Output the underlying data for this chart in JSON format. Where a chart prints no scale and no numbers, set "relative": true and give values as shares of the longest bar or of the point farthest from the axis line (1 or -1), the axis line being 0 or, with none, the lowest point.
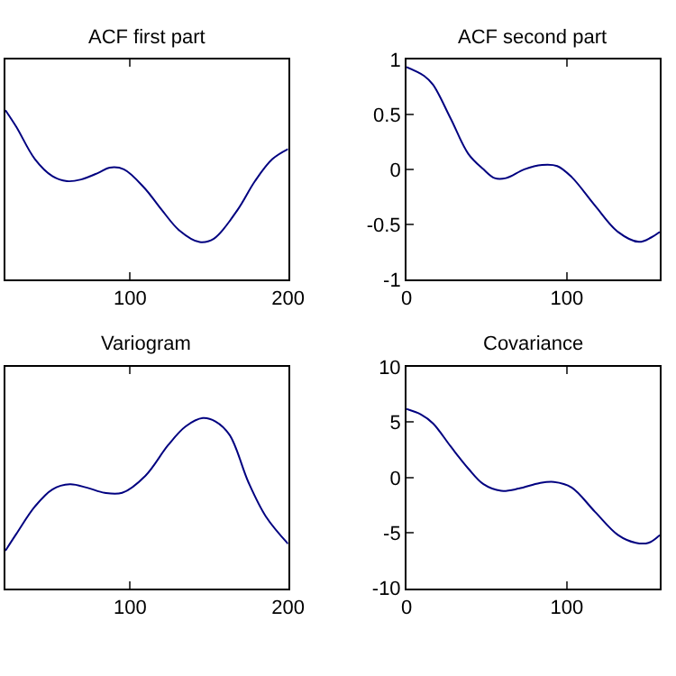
{
  "chart_data": [
    {
      "type": "line",
      "title": "ACF first part",
      "relative": true,
      "tick_labels": "x",
      "color": "#000080",
      "xlim": [
        21,
        200
      ],
      "xticks": [
        100,
        200
      ],
      "x": [
        21,
        28,
        39.7,
        50.7,
        60,
        69,
        80,
        87,
        96,
        109,
        120,
        131,
        144,
        153,
        168,
        179,
        190,
        200
      ],
      "values": [
        1,
        0.9,
        0.71,
        0.61,
        0.58,
        0.59,
        0.63,
        0.66,
        0.65,
        0.54,
        0.41,
        0.29,
        0.22,
        0.24,
        0.41,
        0.58,
        0.71,
        0.77
      ]
    },
    {
      "type": "line",
      "title": "ACF second part",
      "color": "#000080",
      "xlim": [
        0,
        158
      ],
      "xticks": [
        0,
        100
      ],
      "ylim": [
        -1,
        1
      ],
      "yticks": [
        -1,
        -0.5,
        0,
        0.5,
        1
      ],
      "x": [
        0,
        11,
        16.5,
        27.6,
        38.6,
        48,
        55,
        62,
        73.5,
        84.6,
        94,
        103,
        117.6,
        132,
        145,
        152.6,
        158
      ],
      "values": [
        0.93,
        0.85,
        0.77,
        0.46,
        0.14,
        0.0,
        -0.08,
        -0.08,
        0.0,
        0.04,
        0.03,
        -0.07,
        -0.33,
        -0.57,
        -0.66,
        -0.62,
        -0.57
      ]
    },
    {
      "type": "line",
      "title": "Variogram",
      "relative": true,
      "tick_labels": "x",
      "color": "#000080",
      "xlim": [
        21,
        200
      ],
      "xticks": [
        100,
        200
      ],
      "x": [
        21,
        28,
        39.7,
        50.7,
        61.8,
        72.8,
        83.8,
        94.9,
        109.6,
        124,
        135,
        146,
        154,
        163,
        175,
        186,
        200
      ],
      "values": [
        0.22,
        0.32,
        0.48,
        0.58,
        0.61,
        0.59,
        0.56,
        0.56,
        0.66,
        0.84,
        0.95,
        1,
        0.98,
        0.9,
        0.62,
        0.42,
        0.26
      ]
    },
    {
      "type": "line",
      "title": "Covariance",
      "color": "#000080",
      "xlim": [
        0,
        158
      ],
      "xticks": [
        0,
        100
      ],
      "ylim": [
        -10,
        10
      ],
      "yticks": [
        -10,
        -5,
        0,
        5,
        10
      ],
      "x": [
        0,
        9,
        16.5,
        27.6,
        38.6,
        48,
        59,
        70,
        83,
        92,
        103,
        117.6,
        132,
        143,
        151,
        158
      ],
      "values": [
        6.2,
        5.7,
        4.9,
        2.8,
        0.8,
        -0.6,
        -1.2,
        -1.0,
        -0.5,
        -0.4,
        -0.9,
        -3.1,
        -5.2,
        -5.9,
        -5.9,
        -5.2
      ]
    }
  ]
}
